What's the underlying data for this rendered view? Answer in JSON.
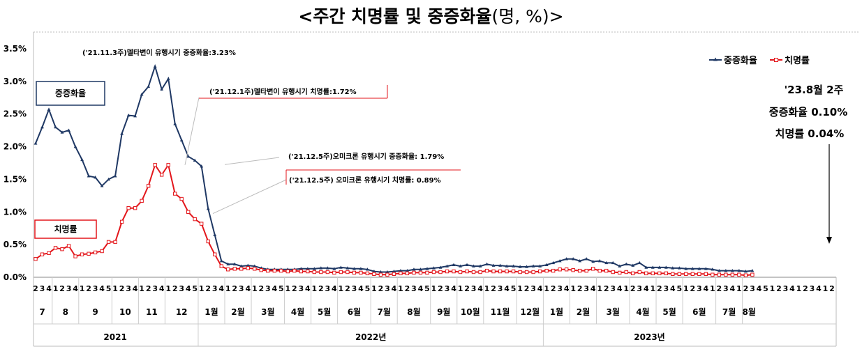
{
  "title": "<주간 치명률 및 중증화율",
  "title_paren": "(명, %)>",
  "chart_data": {
    "type": "line",
    "ylim": [
      0,
      3.5
    ],
    "y_ticks": [
      "0.0%",
      "0.5%",
      "1.0%",
      "1.5%",
      "2.0%",
      "2.5%",
      "3.0%",
      "3.5%"
    ],
    "week_labels": [
      "2",
      "3",
      "4",
      "1",
      "2",
      "3",
      "4",
      "1",
      "2",
      "3",
      "4",
      "5",
      "1",
      "2",
      "3",
      "4",
      "1",
      "2",
      "3",
      "4",
      "1",
      "2",
      "3",
      "4",
      "5",
      "1",
      "2",
      "3",
      "4",
      "1",
      "2",
      "3",
      "4",
      "1",
      "2",
      "3",
      "4",
      "5",
      "1",
      "2",
      "3",
      "4",
      "1",
      "2",
      "3",
      "4",
      "1",
      "2",
      "3",
      "4",
      "5",
      "1",
      "2",
      "3",
      "4",
      "1",
      "2",
      "3",
      "4",
      "5",
      "1",
      "2",
      "3",
      "4",
      "1",
      "2",
      "3",
      "4",
      "1",
      "2",
      "3",
      "4",
      "5",
      "1",
      "2",
      "3",
      "4",
      "1",
      "2",
      "3",
      "4",
      "1",
      "2",
      "3",
      "4",
      "1",
      "2",
      "3",
      "4",
      "1",
      "2",
      "3",
      "4",
      "1",
      "2",
      "3",
      "4",
      "5",
      "1",
      "2",
      "3",
      "4",
      "1",
      "2",
      "3",
      "4",
      "1",
      "2",
      "3",
      "4",
      "5",
      "1",
      "2",
      "3",
      "4",
      "1",
      "2",
      "3",
      "4",
      "1",
      "2"
    ],
    "months": [
      {
        "label": "7",
        "start": 0,
        "end": 2
      },
      {
        "label": "8",
        "start": 3,
        "end": 6
      },
      {
        "label": "9",
        "start": 7,
        "end": 11
      },
      {
        "label": "10",
        "start": 12,
        "end": 15
      },
      {
        "label": "11",
        "start": 16,
        "end": 19
      },
      {
        "label": "12",
        "start": 20,
        "end": 24
      },
      {
        "label": "1월",
        "start": 25,
        "end": 28
      },
      {
        "label": "2월",
        "start": 29,
        "end": 32
      },
      {
        "label": "3월",
        "start": 33,
        "end": 37
      },
      {
        "label": "4월",
        "start": 38,
        "end": 41
      },
      {
        "label": "5월",
        "start": 42,
        "end": 45
      },
      {
        "label": "6월",
        "start": 46,
        "end": 50
      },
      {
        "label": "7월",
        "start": 51,
        "end": 54
      },
      {
        "label": "8월",
        "start": 55,
        "end": 59
      },
      {
        "label": "9월",
        "start": 60,
        "end": 63
      },
      {
        "label": "10월",
        "start": 64,
        "end": 67
      },
      {
        "label": "11월",
        "start": 68,
        "end": 72
      },
      {
        "label": "12월",
        "start": 73,
        "end": 76
      },
      {
        "label": "1월",
        "start": 77,
        "end": 80
      },
      {
        "label": "2월",
        "start": 81,
        "end": 84
      },
      {
        "label": "3월",
        "start": 85,
        "end": 89
      },
      {
        "label": "4월",
        "start": 90,
        "end": 93
      },
      {
        "label": "5월",
        "start": 94,
        "end": 97
      },
      {
        "label": "6월",
        "start": 98,
        "end": 102
      },
      {
        "label": "7월",
        "start": 103,
        "end": 106
      },
      {
        "label": "8월",
        "start": 107,
        "end": 108
      }
    ],
    "years": [
      {
        "label": "2021",
        "start": 0,
        "end": 24
      },
      {
        "label": "2022년",
        "start": 25,
        "end": 76
      },
      {
        "label": "2023년",
        "start": 77,
        "end": 108
      }
    ],
    "series": [
      {
        "name": "중증화율",
        "color": "#1f3864",
        "marker": "triangle",
        "values": [
          2.05,
          2.3,
          2.57,
          2.3,
          2.22,
          2.25,
          2.0,
          1.8,
          1.55,
          1.53,
          1.4,
          1.5,
          1.55,
          2.2,
          2.48,
          2.47,
          2.8,
          2.92,
          3.23,
          2.88,
          3.04,
          2.35,
          2.1,
          1.85,
          1.79,
          1.7,
          1.05,
          0.65,
          0.25,
          0.2,
          0.2,
          0.17,
          0.18,
          0.17,
          0.14,
          0.12,
          0.12,
          0.12,
          0.12,
          0.12,
          0.13,
          0.13,
          0.13,
          0.14,
          0.14,
          0.13,
          0.15,
          0.14,
          0.13,
          0.13,
          0.12,
          0.09,
          0.08,
          0.08,
          0.09,
          0.1,
          0.1,
          0.12,
          0.12,
          0.13,
          0.14,
          0.15,
          0.17,
          0.19,
          0.17,
          0.19,
          0.17,
          0.17,
          0.2,
          0.18,
          0.18,
          0.17,
          0.17,
          0.16,
          0.16,
          0.17,
          0.17,
          0.19,
          0.22,
          0.25,
          0.28,
          0.28,
          0.25,
          0.28,
          0.24,
          0.25,
          0.22,
          0.22,
          0.17,
          0.2,
          0.18,
          0.22,
          0.15,
          0.15,
          0.15,
          0.15,
          0.14,
          0.14,
          0.13,
          0.13,
          0.13,
          0.13,
          0.12,
          0.1,
          0.1,
          0.1,
          0.1,
          0.09,
          0.1
        ]
      },
      {
        "name": "치명률",
        "color": "#e3161b",
        "marker": "square",
        "values": [
          0.28,
          0.35,
          0.37,
          0.45,
          0.43,
          0.48,
          0.32,
          0.35,
          0.36,
          0.38,
          0.4,
          0.54,
          0.54,
          0.85,
          1.06,
          1.06,
          1.17,
          1.4,
          1.72,
          1.57,
          1.72,
          1.28,
          1.2,
          1.0,
          0.89,
          0.82,
          0.55,
          0.35,
          0.17,
          0.12,
          0.13,
          0.13,
          0.14,
          0.13,
          0.11,
          0.1,
          0.1,
          0.1,
          0.09,
          0.1,
          0.09,
          0.09,
          0.08,
          0.08,
          0.08,
          0.07,
          0.08,
          0.08,
          0.07,
          0.07,
          0.06,
          0.05,
          0.04,
          0.04,
          0.05,
          0.06,
          0.06,
          0.07,
          0.07,
          0.07,
          0.08,
          0.08,
          0.09,
          0.09,
          0.08,
          0.09,
          0.08,
          0.08,
          0.1,
          0.09,
          0.09,
          0.09,
          0.09,
          0.08,
          0.08,
          0.08,
          0.09,
          0.1,
          0.1,
          0.12,
          0.12,
          0.11,
          0.1,
          0.1,
          0.13,
          0.1,
          0.1,
          0.08,
          0.07,
          0.08,
          0.06,
          0.08,
          0.06,
          0.06,
          0.06,
          0.06,
          0.05,
          0.05,
          0.05,
          0.05,
          0.05,
          0.05,
          0.04,
          0.04,
          0.04,
          0.04,
          0.04,
          0.03,
          0.04
        ]
      }
    ],
    "annotations": [
      {
        "text": "('21.11.3주)델타변이 유행시기 중증화율:3.23%"
      },
      {
        "text": "('21.12.1주)델타변이 유행시기 치명률:1.72%"
      },
      {
        "text": "('21.12.5주)오미크론 유행시기 중증화율: 1.79%"
      },
      {
        "text": "('21.12.5주) 오미크론 유행시기 치명률: 0.89%"
      }
    ],
    "box_labels": [
      "중증화율",
      "치명률"
    ],
    "side_note": [
      "'23.8월 2주",
      "중증화율 0.10%",
      "치명률 0.04%"
    ]
  }
}
